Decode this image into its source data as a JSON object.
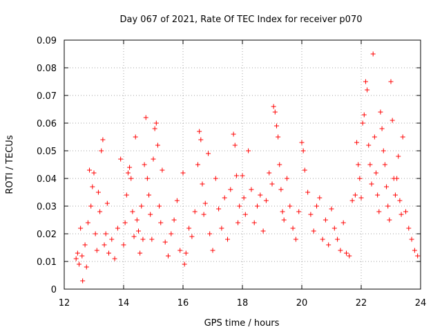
{
  "chart_data": {
    "type": "scatter",
    "title": "Day 067 of 2021, Rate Of TEC Index for receiver p070",
    "xlabel": "GPS time / hours",
    "ylabel": "ROTI / TECUs",
    "xlim": [
      12,
      24
    ],
    "ylim": [
      0,
      0.09
    ],
    "xticks": [
      12,
      14,
      16,
      18,
      20,
      22,
      24
    ],
    "xtick_labels": [
      "12",
      "14",
      "16",
      "18",
      "20",
      "22",
      "24"
    ],
    "yticks": [
      0,
      0.01,
      0.02,
      0.03,
      0.04,
      0.05,
      0.06,
      0.07,
      0.08,
      0.09
    ],
    "ytick_labels": [
      "0",
      "0.01",
      "0.02",
      "0.03",
      "0.04",
      "0.05",
      "0.06",
      "0.07",
      "0.08",
      "0.09"
    ],
    "grid": true,
    "marker": "+",
    "marker_color": "#ff0000",
    "series": [
      {
        "name": "ROTI",
        "points": [
          [
            12.4,
            0.011
          ],
          [
            12.45,
            0.013
          ],
          [
            12.5,
            0.009
          ],
          [
            12.55,
            0.022
          ],
          [
            12.6,
            0.012
          ],
          [
            12.62,
            0.003
          ],
          [
            12.7,
            0.016
          ],
          [
            12.75,
            0.008
          ],
          [
            12.8,
            0.024
          ],
          [
            12.85,
            0.043
          ],
          [
            12.9,
            0.03
          ],
          [
            12.95,
            0.037
          ],
          [
            13.0,
            0.042
          ],
          [
            13.05,
            0.02
          ],
          [
            13.1,
            0.014
          ],
          [
            13.15,
            0.035
          ],
          [
            13.2,
            0.028
          ],
          [
            13.25,
            0.05
          ],
          [
            13.3,
            0.054
          ],
          [
            13.35,
            0.016
          ],
          [
            13.4,
            0.02
          ],
          [
            13.45,
            0.031
          ],
          [
            13.5,
            0.013
          ],
          [
            13.6,
            0.018
          ],
          [
            13.7,
            0.011
          ],
          [
            13.8,
            0.022
          ],
          [
            13.9,
            0.047
          ],
          [
            14.0,
            0.016
          ],
          [
            14.05,
            0.024
          ],
          [
            14.1,
            0.034
          ],
          [
            14.15,
            0.042
          ],
          [
            14.2,
            0.044
          ],
          [
            14.25,
            0.04
          ],
          [
            14.3,
            0.028
          ],
          [
            14.35,
            0.019
          ],
          [
            14.4,
            0.055
          ],
          [
            14.45,
            0.025
          ],
          [
            14.5,
            0.021
          ],
          [
            14.55,
            0.013
          ],
          [
            14.6,
            0.03
          ],
          [
            14.65,
            0.018
          ],
          [
            14.7,
            0.045
          ],
          [
            14.75,
            0.062
          ],
          [
            14.8,
            0.04
          ],
          [
            14.85,
            0.034
          ],
          [
            14.9,
            0.027
          ],
          [
            14.95,
            0.018
          ],
          [
            15.0,
            0.047
          ],
          [
            15.05,
            0.058
          ],
          [
            15.1,
            0.06
          ],
          [
            15.15,
            0.052
          ],
          [
            15.2,
            0.03
          ],
          [
            15.25,
            0.024
          ],
          [
            15.3,
            0.043
          ],
          [
            15.4,
            0.017
          ],
          [
            15.5,
            0.012
          ],
          [
            15.6,
            0.02
          ],
          [
            15.7,
            0.025
          ],
          [
            15.8,
            0.032
          ],
          [
            15.9,
            0.014
          ],
          [
            16.0,
            0.042
          ],
          [
            16.05,
            0.009
          ],
          [
            16.1,
            0.013
          ],
          [
            16.2,
            0.022
          ],
          [
            16.3,
            0.019
          ],
          [
            16.4,
            0.028
          ],
          [
            16.5,
            0.045
          ],
          [
            16.55,
            0.057
          ],
          [
            16.6,
            0.054
          ],
          [
            16.65,
            0.038
          ],
          [
            16.7,
            0.027
          ],
          [
            16.75,
            0.031
          ],
          [
            16.85,
            0.049
          ],
          [
            16.9,
            0.02
          ],
          [
            17.0,
            0.014
          ],
          [
            17.1,
            0.04
          ],
          [
            17.2,
            0.029
          ],
          [
            17.3,
            0.022
          ],
          [
            17.4,
            0.033
          ],
          [
            17.5,
            0.018
          ],
          [
            17.6,
            0.036
          ],
          [
            17.7,
            0.056
          ],
          [
            17.75,
            0.052
          ],
          [
            17.8,
            0.041
          ],
          [
            17.85,
            0.024
          ],
          [
            17.9,
            0.03
          ],
          [
            18.0,
            0.041
          ],
          [
            18.05,
            0.033
          ],
          [
            18.1,
            0.027
          ],
          [
            18.2,
            0.05
          ],
          [
            18.3,
            0.036
          ],
          [
            18.4,
            0.024
          ],
          [
            18.5,
            0.03
          ],
          [
            18.6,
            0.034
          ],
          [
            18.7,
            0.021
          ],
          [
            18.8,
            0.032
          ],
          [
            18.9,
            0.042
          ],
          [
            19.0,
            0.038
          ],
          [
            19.05,
            0.066
          ],
          [
            19.1,
            0.064
          ],
          [
            19.15,
            0.059
          ],
          [
            19.2,
            0.055
          ],
          [
            19.25,
            0.045
          ],
          [
            19.3,
            0.036
          ],
          [
            19.35,
            0.028
          ],
          [
            19.4,
            0.025
          ],
          [
            19.5,
            0.04
          ],
          [
            19.6,
            0.03
          ],
          [
            19.7,
            0.022
          ],
          [
            19.8,
            0.018
          ],
          [
            19.9,
            0.028
          ],
          [
            20.0,
            0.053
          ],
          [
            20.05,
            0.05
          ],
          [
            20.1,
            0.043
          ],
          [
            20.2,
            0.035
          ],
          [
            20.3,
            0.027
          ],
          [
            20.4,
            0.021
          ],
          [
            20.5,
            0.03
          ],
          [
            20.6,
            0.033
          ],
          [
            20.7,
            0.018
          ],
          [
            20.8,
            0.025
          ],
          [
            20.9,
            0.016
          ],
          [
            21.0,
            0.029
          ],
          [
            21.1,
            0.022
          ],
          [
            21.2,
            0.018
          ],
          [
            21.3,
            0.014
          ],
          [
            21.4,
            0.024
          ],
          [
            21.5,
            0.013
          ],
          [
            21.6,
            0.012
          ],
          [
            21.7,
            0.032
          ],
          [
            21.8,
            0.034
          ],
          [
            21.85,
            0.053
          ],
          [
            21.9,
            0.045
          ],
          [
            21.95,
            0.04
          ],
          [
            22.0,
            0.033
          ],
          [
            22.05,
            0.06
          ],
          [
            22.1,
            0.063
          ],
          [
            22.15,
            0.075
          ],
          [
            22.2,
            0.072
          ],
          [
            22.25,
            0.052
          ],
          [
            22.3,
            0.045
          ],
          [
            22.35,
            0.038
          ],
          [
            22.4,
            0.085
          ],
          [
            22.45,
            0.055
          ],
          [
            22.5,
            0.042
          ],
          [
            22.55,
            0.034
          ],
          [
            22.6,
            0.028
          ],
          [
            22.65,
            0.064
          ],
          [
            22.7,
            0.058
          ],
          [
            22.75,
            0.05
          ],
          [
            22.8,
            0.045
          ],
          [
            22.85,
            0.037
          ],
          [
            22.9,
            0.03
          ],
          [
            22.95,
            0.025
          ],
          [
            23.0,
            0.075
          ],
          [
            23.05,
            0.061
          ],
          [
            23.1,
            0.04
          ],
          [
            23.15,
            0.034
          ],
          [
            23.2,
            0.04
          ],
          [
            23.25,
            0.048
          ],
          [
            23.3,
            0.032
          ],
          [
            23.35,
            0.027
          ],
          [
            23.4,
            0.055
          ],
          [
            23.5,
            0.028
          ],
          [
            23.6,
            0.022
          ],
          [
            23.7,
            0.018
          ],
          [
            23.8,
            0.014
          ],
          [
            23.9,
            0.012
          ]
        ]
      }
    ]
  }
}
